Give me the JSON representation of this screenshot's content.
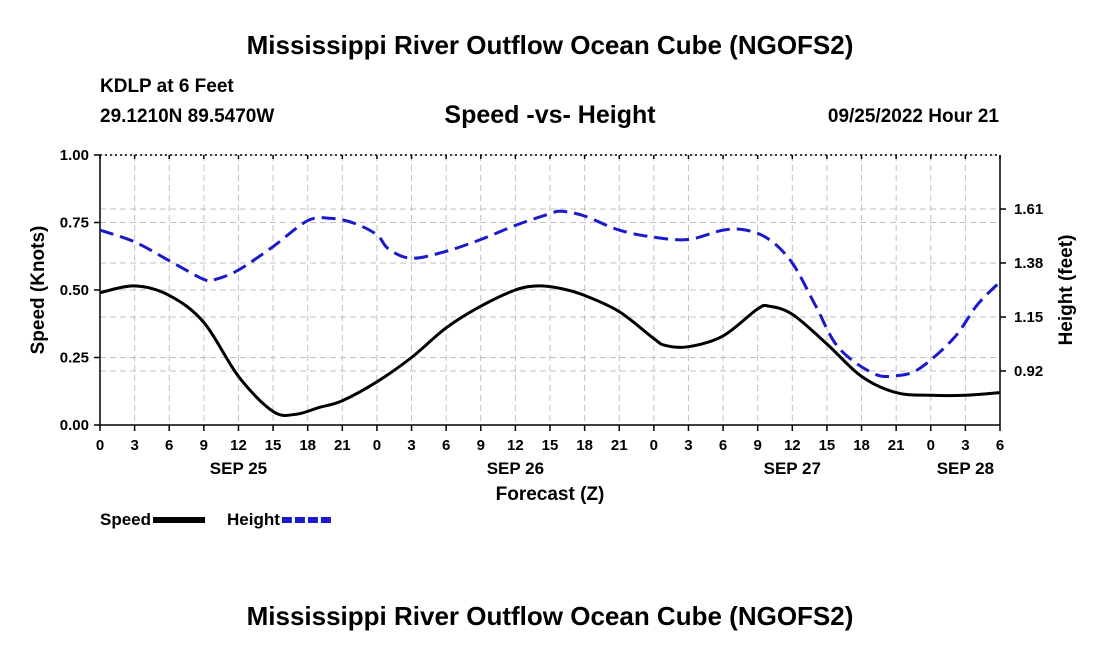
{
  "header": {
    "title": "Mississippi River Outflow Ocean Cube (NGOFS2)",
    "station": "KDLP at 6 Feet",
    "coords": "29.1210N  89.5470W",
    "subtitle": "Speed -vs- Height",
    "run_time": "09/25/2022 Hour 21"
  },
  "footer": {
    "title": "Mississippi River Outflow Ocean Cube (NGOFS2)"
  },
  "chart_data": {
    "type": "line",
    "xlabel": "Forecast (Z)",
    "x_unit": "hours from 0Z SEP 25",
    "xlim": [
      0,
      78
    ],
    "x_tick_step": 3,
    "x_tick_labels": [
      "0",
      "3",
      "6",
      "9",
      "12",
      "15",
      "18",
      "21",
      "0",
      "3",
      "6",
      "9",
      "12",
      "15",
      "18",
      "21",
      "0",
      "3",
      "6",
      "9",
      "12",
      "15",
      "18",
      "21",
      "0",
      "3",
      "6"
    ],
    "date_labels": [
      {
        "x": 12,
        "label": "SEP 25"
      },
      {
        "x": 36,
        "label": "SEP 26"
      },
      {
        "x": 60,
        "label": "SEP 27"
      },
      {
        "x": 75,
        "label": "SEP 28"
      }
    ],
    "ylabel_left": "Speed (Knots)",
    "ylim_left": [
      0,
      1
    ],
    "y_ticks_left": [
      0,
      0.25,
      0.5,
      0.75,
      1
    ],
    "y_tick_labels_left": [
      "0.00",
      "0.25",
      "0.50",
      "0.75",
      "1.00"
    ],
    "ylabel_right": "Height (feet)",
    "ylim_right": [
      0.69,
      1.84
    ],
    "y_ticks_right": [
      0.92,
      1.15,
      1.38,
      1.61
    ],
    "y_tick_labels_right": [
      "0.92",
      "1.15",
      "1.38",
      "1.61"
    ],
    "grid": true,
    "legend_position": "bottom-left",
    "series": [
      {
        "name": "Speed",
        "axis": "left",
        "color": "#000000",
        "style": "solid",
        "points": [
          [
            0,
            0.49
          ],
          [
            3,
            0.515
          ],
          [
            6,
            0.48
          ],
          [
            9,
            0.38
          ],
          [
            12,
            0.18
          ],
          [
            15,
            0.05
          ],
          [
            17,
            0.04
          ],
          [
            19,
            0.065
          ],
          [
            21,
            0.09
          ],
          [
            24,
            0.16
          ],
          [
            27,
            0.25
          ],
          [
            30,
            0.36
          ],
          [
            33,
            0.44
          ],
          [
            36,
            0.5
          ],
          [
            38,
            0.515
          ],
          [
            40,
            0.505
          ],
          [
            42,
            0.48
          ],
          [
            45,
            0.42
          ],
          [
            48,
            0.32
          ],
          [
            49,
            0.295
          ],
          [
            51,
            0.29
          ],
          [
            54,
            0.33
          ],
          [
            57,
            0.43
          ],
          [
            58,
            0.44
          ],
          [
            60,
            0.41
          ],
          [
            63,
            0.3
          ],
          [
            66,
            0.18
          ],
          [
            69,
            0.12
          ],
          [
            72,
            0.11
          ],
          [
            75,
            0.11
          ],
          [
            78,
            0.12
          ]
        ]
      },
      {
        "name": "Height",
        "axis": "right",
        "color": "#1a1acc",
        "style": "dashed",
        "points": [
          [
            0,
            1.52
          ],
          [
            3,
            1.47
          ],
          [
            6,
            1.39
          ],
          [
            9,
            1.31
          ],
          [
            10,
            1.31
          ],
          [
            12,
            1.35
          ],
          [
            15,
            1.45
          ],
          [
            18,
            1.56
          ],
          [
            20,
            1.57
          ],
          [
            22,
            1.55
          ],
          [
            24,
            1.5
          ],
          [
            25,
            1.44
          ],
          [
            27,
            1.4
          ],
          [
            30,
            1.43
          ],
          [
            33,
            1.48
          ],
          [
            36,
            1.54
          ],
          [
            39,
            1.59
          ],
          [
            40,
            1.6
          ],
          [
            42,
            1.58
          ],
          [
            45,
            1.52
          ],
          [
            48,
            1.49
          ],
          [
            51,
            1.48
          ],
          [
            54,
            1.52
          ],
          [
            56,
            1.52
          ],
          [
            58,
            1.48
          ],
          [
            60,
            1.38
          ],
          [
            62,
            1.2
          ],
          [
            64,
            1.02
          ],
          [
            67,
            0.91
          ],
          [
            69,
            0.9
          ],
          [
            71,
            0.93
          ],
          [
            74,
            1.06
          ],
          [
            76,
            1.2
          ],
          [
            78,
            1.3
          ]
        ]
      }
    ]
  }
}
